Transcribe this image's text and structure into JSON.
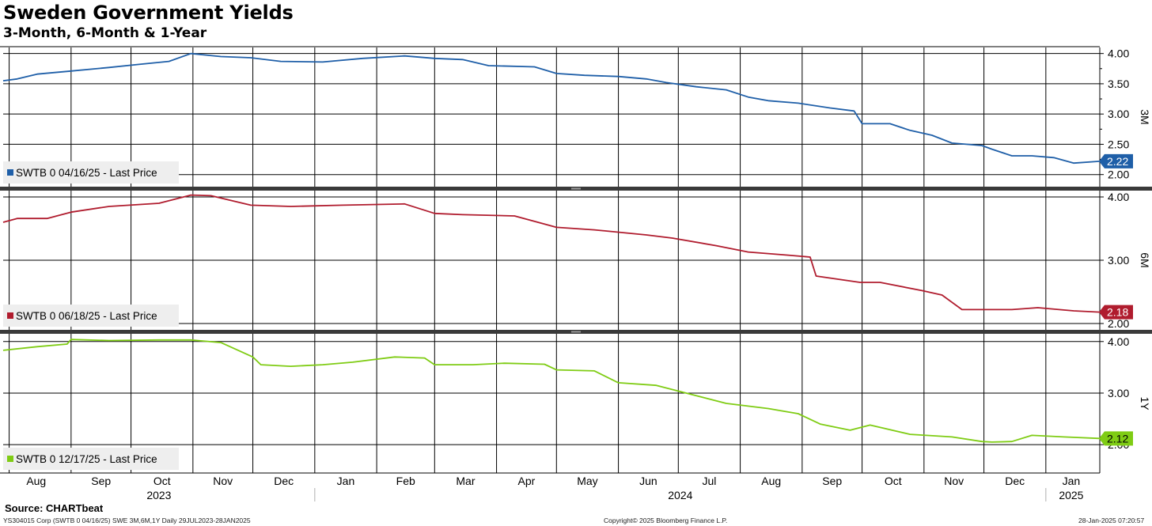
{
  "header": {
    "title": "Sweden Government Yields",
    "subtitle": "3-Month, 6-Month & 1-Year"
  },
  "footer": {
    "source": "Source: CHARTbeat",
    "ticker_info": "YS304015 Corp (SWTB 0 04/16/25) SWE 3M,6M,1Y  Daily 29JUL2023-28JAN2025",
    "copyright": "Copyright© 2025 Bloomberg Finance L.P.",
    "timestamp": "28-Jan-2025 07:20:57"
  },
  "chart_data": {
    "type": "line",
    "x_axis": {
      "months": [
        "Aug",
        "Sep",
        "Oct",
        "Nov",
        "Dec",
        "Jan",
        "Feb",
        "Mar",
        "Apr",
        "May",
        "Jun",
        "Jul",
        "Aug",
        "Sep",
        "Oct",
        "Nov",
        "Dec",
        "Jan"
      ],
      "years": [
        "2023",
        "2024",
        "2025"
      ],
      "range": [
        "2023-07-29",
        "2025-01-28"
      ]
    },
    "panels": [
      {
        "axis_label": "3M",
        "legend": "SWTB 0 04/16/25 - Last Price",
        "color": "#1f5fa8",
        "last_value": "2.22",
        "ylim": [
          1.8,
          4.1
        ],
        "yticks": [
          "4.00",
          "3.50",
          "3.00",
          "2.50",
          "2.00"
        ],
        "x": [
          "2023-07-29",
          "2023-08-05",
          "2023-08-15",
          "2023-09-01",
          "2023-09-20",
          "2023-10-05",
          "2023-10-20",
          "2023-10-31",
          "2023-11-15",
          "2023-11-30",
          "2023-12-15",
          "2024-01-05",
          "2024-01-25",
          "2024-02-15",
          "2024-03-01",
          "2024-03-15",
          "2024-03-28",
          "2024-04-20",
          "2024-05-01",
          "2024-05-15",
          "2024-06-01",
          "2024-06-15",
          "2024-06-25",
          "2024-07-10",
          "2024-07-25",
          "2024-08-05",
          "2024-08-15",
          "2024-08-30",
          "2024-09-15",
          "2024-09-27",
          "2024-10-01",
          "2024-10-15",
          "2024-10-25",
          "2024-11-05",
          "2024-11-15",
          "2024-11-30",
          "2024-12-05",
          "2024-12-15",
          "2024-12-25",
          "2025-01-05",
          "2025-01-15",
          "2025-01-28"
        ],
        "values": [
          3.55,
          3.58,
          3.66,
          3.71,
          3.77,
          3.82,
          3.87,
          4.0,
          3.95,
          3.93,
          3.87,
          3.86,
          3.92,
          3.96,
          3.92,
          3.9,
          3.8,
          3.78,
          3.67,
          3.64,
          3.62,
          3.58,
          3.52,
          3.45,
          3.4,
          3.28,
          3.22,
          3.18,
          3.1,
          3.05,
          2.84,
          2.84,
          2.73,
          2.65,
          2.52,
          2.48,
          2.42,
          2.31,
          2.31,
          2.28,
          2.19,
          2.22
        ]
      },
      {
        "axis_label": "6M",
        "legend": "SWTB 0 06/18/25 - Last Price",
        "color": "#b01c2e",
        "last_value": "2.18",
        "ylim": [
          1.9,
          4.1
        ],
        "yticks": [
          "4.00",
          "3.00",
          "2.00"
        ],
        "x": [
          "2023-07-29",
          "2023-08-05",
          "2023-08-20",
          "2023-09-01",
          "2023-09-20",
          "2023-10-15",
          "2023-10-31",
          "2023-11-10",
          "2023-11-30",
          "2023-12-20",
          "2024-01-15",
          "2024-02-15",
          "2024-03-01",
          "2024-03-15",
          "2024-04-10",
          "2024-05-01",
          "2024-05-20",
          "2024-06-15",
          "2024-06-28",
          "2024-07-20",
          "2024-08-05",
          "2024-08-25",
          "2024-09-05",
          "2024-09-08",
          "2024-09-30",
          "2024-10-10",
          "2024-10-31",
          "2024-11-10",
          "2024-11-20",
          "2024-12-05",
          "2024-12-15",
          "2024-12-28",
          "2025-01-15",
          "2025-01-28"
        ],
        "values": [
          3.6,
          3.66,
          3.66,
          3.76,
          3.85,
          3.9,
          4.03,
          4.02,
          3.87,
          3.85,
          3.87,
          3.89,
          3.74,
          3.72,
          3.7,
          3.52,
          3.48,
          3.4,
          3.35,
          3.23,
          3.13,
          3.08,
          3.05,
          2.75,
          2.65,
          2.65,
          2.52,
          2.45,
          2.22,
          2.22,
          2.22,
          2.25,
          2.2,
          2.18
        ]
      },
      {
        "axis_label": "1Y",
        "legend": "SWTB 0 12/17/25 - Last Price",
        "color": "#7fcc14",
        "last_value": "2.12",
        "ylim": [
          1.45,
          4.15
        ],
        "yticks": [
          "4.00",
          "3.00",
          "2.00"
        ],
        "x": [
          "2023-07-29",
          "2023-08-15",
          "2023-08-30",
          "2023-09-01",
          "2023-09-20",
          "2023-10-15",
          "2023-10-31",
          "2023-11-15",
          "2023-12-01",
          "2023-12-05",
          "2023-12-20",
          "2024-01-05",
          "2024-01-20",
          "2024-02-10",
          "2024-02-25",
          "2024-03-01",
          "2024-03-20",
          "2024-04-05",
          "2024-04-25",
          "2024-05-01",
          "2024-05-20",
          "2024-06-01",
          "2024-06-20",
          "2024-07-05",
          "2024-07-25",
          "2024-08-15",
          "2024-08-30",
          "2024-09-10",
          "2024-09-25",
          "2024-10-05",
          "2024-10-25",
          "2024-11-15",
          "2024-11-30",
          "2024-12-05",
          "2024-12-15",
          "2024-12-25",
          "2025-01-10",
          "2025-01-28"
        ],
        "values": [
          3.83,
          3.9,
          3.95,
          4.04,
          4.02,
          4.03,
          4.03,
          3.98,
          3.7,
          3.55,
          3.52,
          3.55,
          3.6,
          3.7,
          3.68,
          3.55,
          3.55,
          3.58,
          3.56,
          3.45,
          3.43,
          3.2,
          3.15,
          3.0,
          2.8,
          2.7,
          2.6,
          2.4,
          2.28,
          2.38,
          2.2,
          2.15,
          2.06,
          2.05,
          2.06,
          2.18,
          2.15,
          2.12
        ]
      }
    ]
  }
}
